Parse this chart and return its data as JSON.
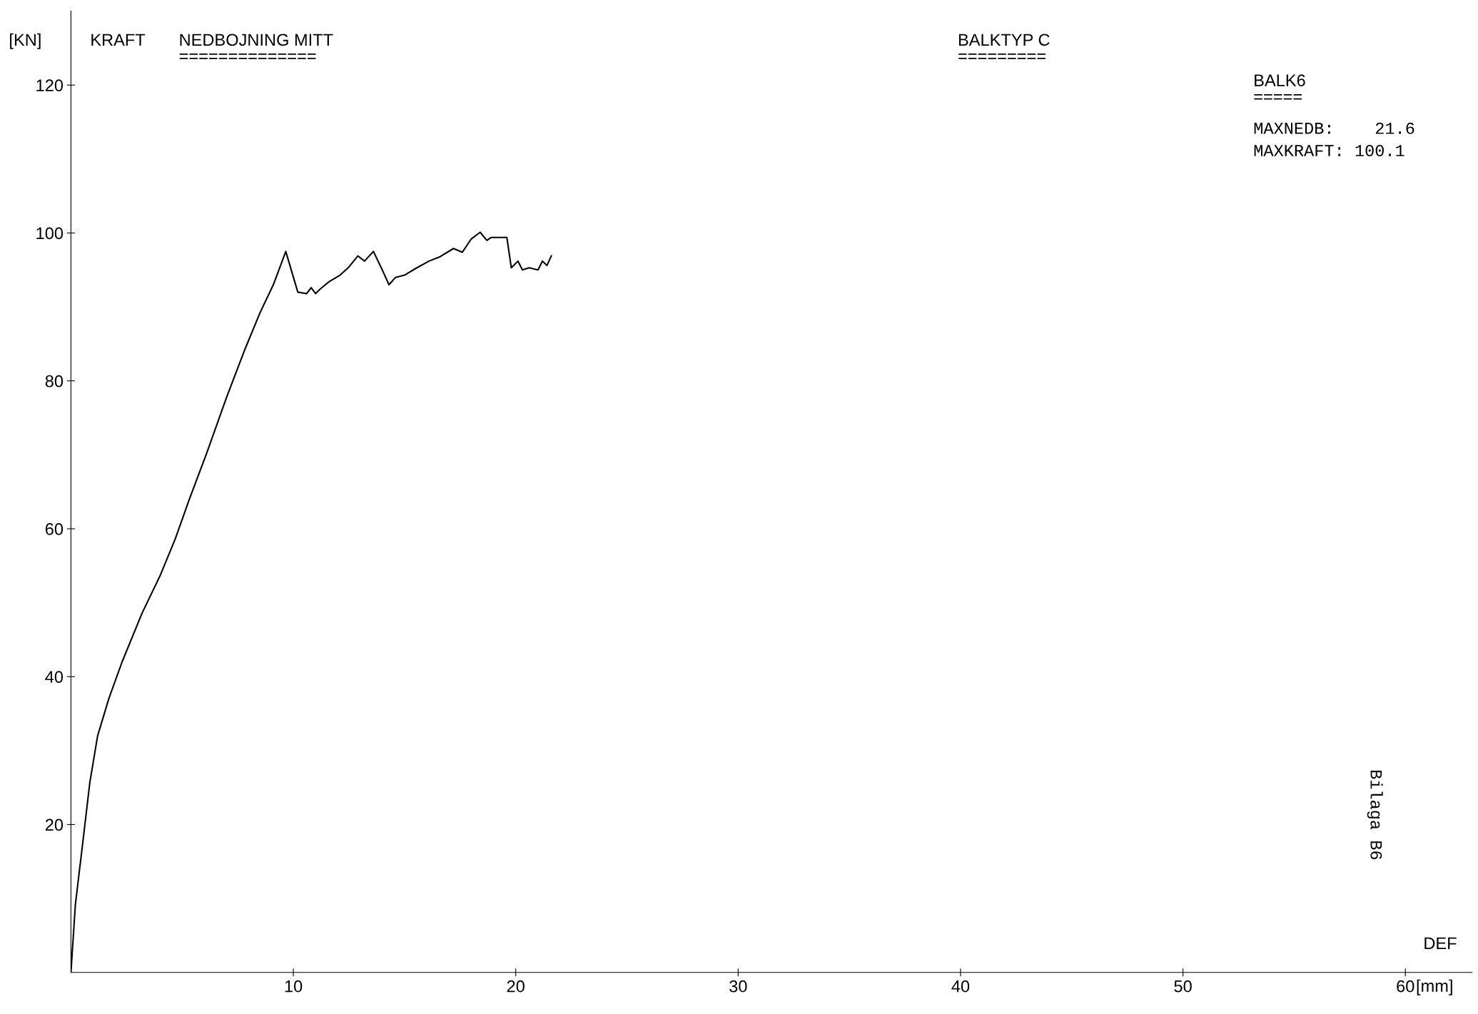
{
  "chart_data": {
    "type": "line",
    "title": "NEDBOJNING MITT",
    "subtitle": "BALKTYP C",
    "ylabel": "[KN]",
    "xlabel": "DEF",
    "annotations": [
      "KRAFT",
      "==============",
      "=========",
      "BALK6",
      "=====",
      "MAXNEDB:    21.6",
      "MAXKRAFT: 100.1",
      "Bilaga B6",
      "[mm]"
    ],
    "x": [
      0,
      0.2,
      0.55,
      0.85,
      1.2,
      1.7,
      2.3,
      3.2,
      4.0,
      4.7,
      5.3,
      6.1,
      7.0,
      7.8,
      8.5,
      9.1,
      9.66,
      10.2,
      10.6,
      10.8,
      11.0,
      11.2,
      11.6,
      12.1,
      12.5,
      12.9,
      13.2,
      13.6,
      14.0,
      14.3,
      14.6,
      15.0,
      15.5,
      16.1,
      16.6,
      17.2,
      17.6,
      18.0,
      18.4,
      18.7,
      18.9,
      19.6,
      19.8,
      20.1,
      20.3,
      20.6,
      21.0,
      21.2,
      21.4,
      21.6
    ],
    "series": [
      {
        "color": "#000000",
        "values": [
          0,
          9.2,
          18,
          25.7,
          32,
          37,
          42,
          48.6,
          53.6,
          58.7,
          63.8,
          70.2,
          77.8,
          84.1,
          89.2,
          93,
          97.5,
          92,
          91.8,
          92.6,
          91.8,
          92.4,
          93.4,
          94.3,
          95.4,
          96.9,
          96.2,
          97.5,
          95,
          93,
          94,
          94.3,
          95.2,
          96.2,
          96.8,
          97.9,
          97.4,
          99.2,
          100.1,
          99.0,
          99.4,
          99.4,
          95.3,
          96.2,
          95.0,
          95.3,
          95.0,
          96.2,
          95.6,
          96.9
        ]
      }
    ],
    "xlim": [
      0,
      63
    ],
    "ylim": [
      0,
      130
    ],
    "xticks": [
      10,
      20,
      30,
      40,
      50,
      60
    ],
    "yticks": [
      20,
      40,
      60,
      80,
      100,
      120
    ],
    "grid": false,
    "legend": false,
    "marker": "none",
    "line_style": "solid"
  }
}
